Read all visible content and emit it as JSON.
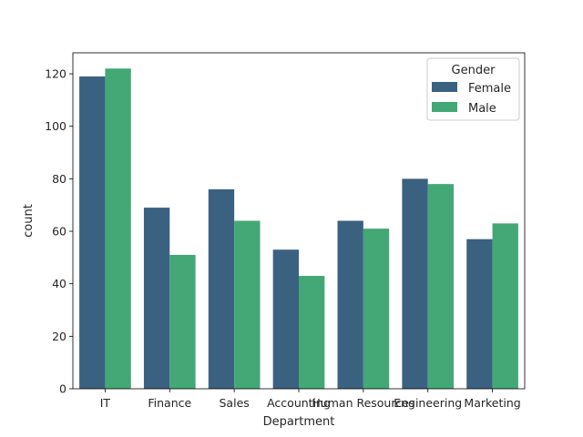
{
  "chart_data": {
    "type": "bar",
    "xlabel": "Department",
    "ylabel": "count",
    "ylim": [
      0,
      128
    ],
    "yticks": [
      0,
      20,
      40,
      60,
      80,
      100,
      120
    ],
    "categories": [
      "IT",
      "Finance",
      "Sales",
      "Accounting",
      "Human Resources",
      "Engineering",
      "Marketing"
    ],
    "series": [
      {
        "name": "Female",
        "color": "#3b6181",
        "values": [
          119,
          69,
          76,
          53,
          64,
          80,
          57
        ]
      },
      {
        "name": "Male",
        "color": "#43a876",
        "values": [
          122,
          51,
          64,
          43,
          61,
          78,
          63
        ]
      }
    ],
    "legend": {
      "title": "Gender",
      "placement": "top-right"
    },
    "grid": false
  }
}
